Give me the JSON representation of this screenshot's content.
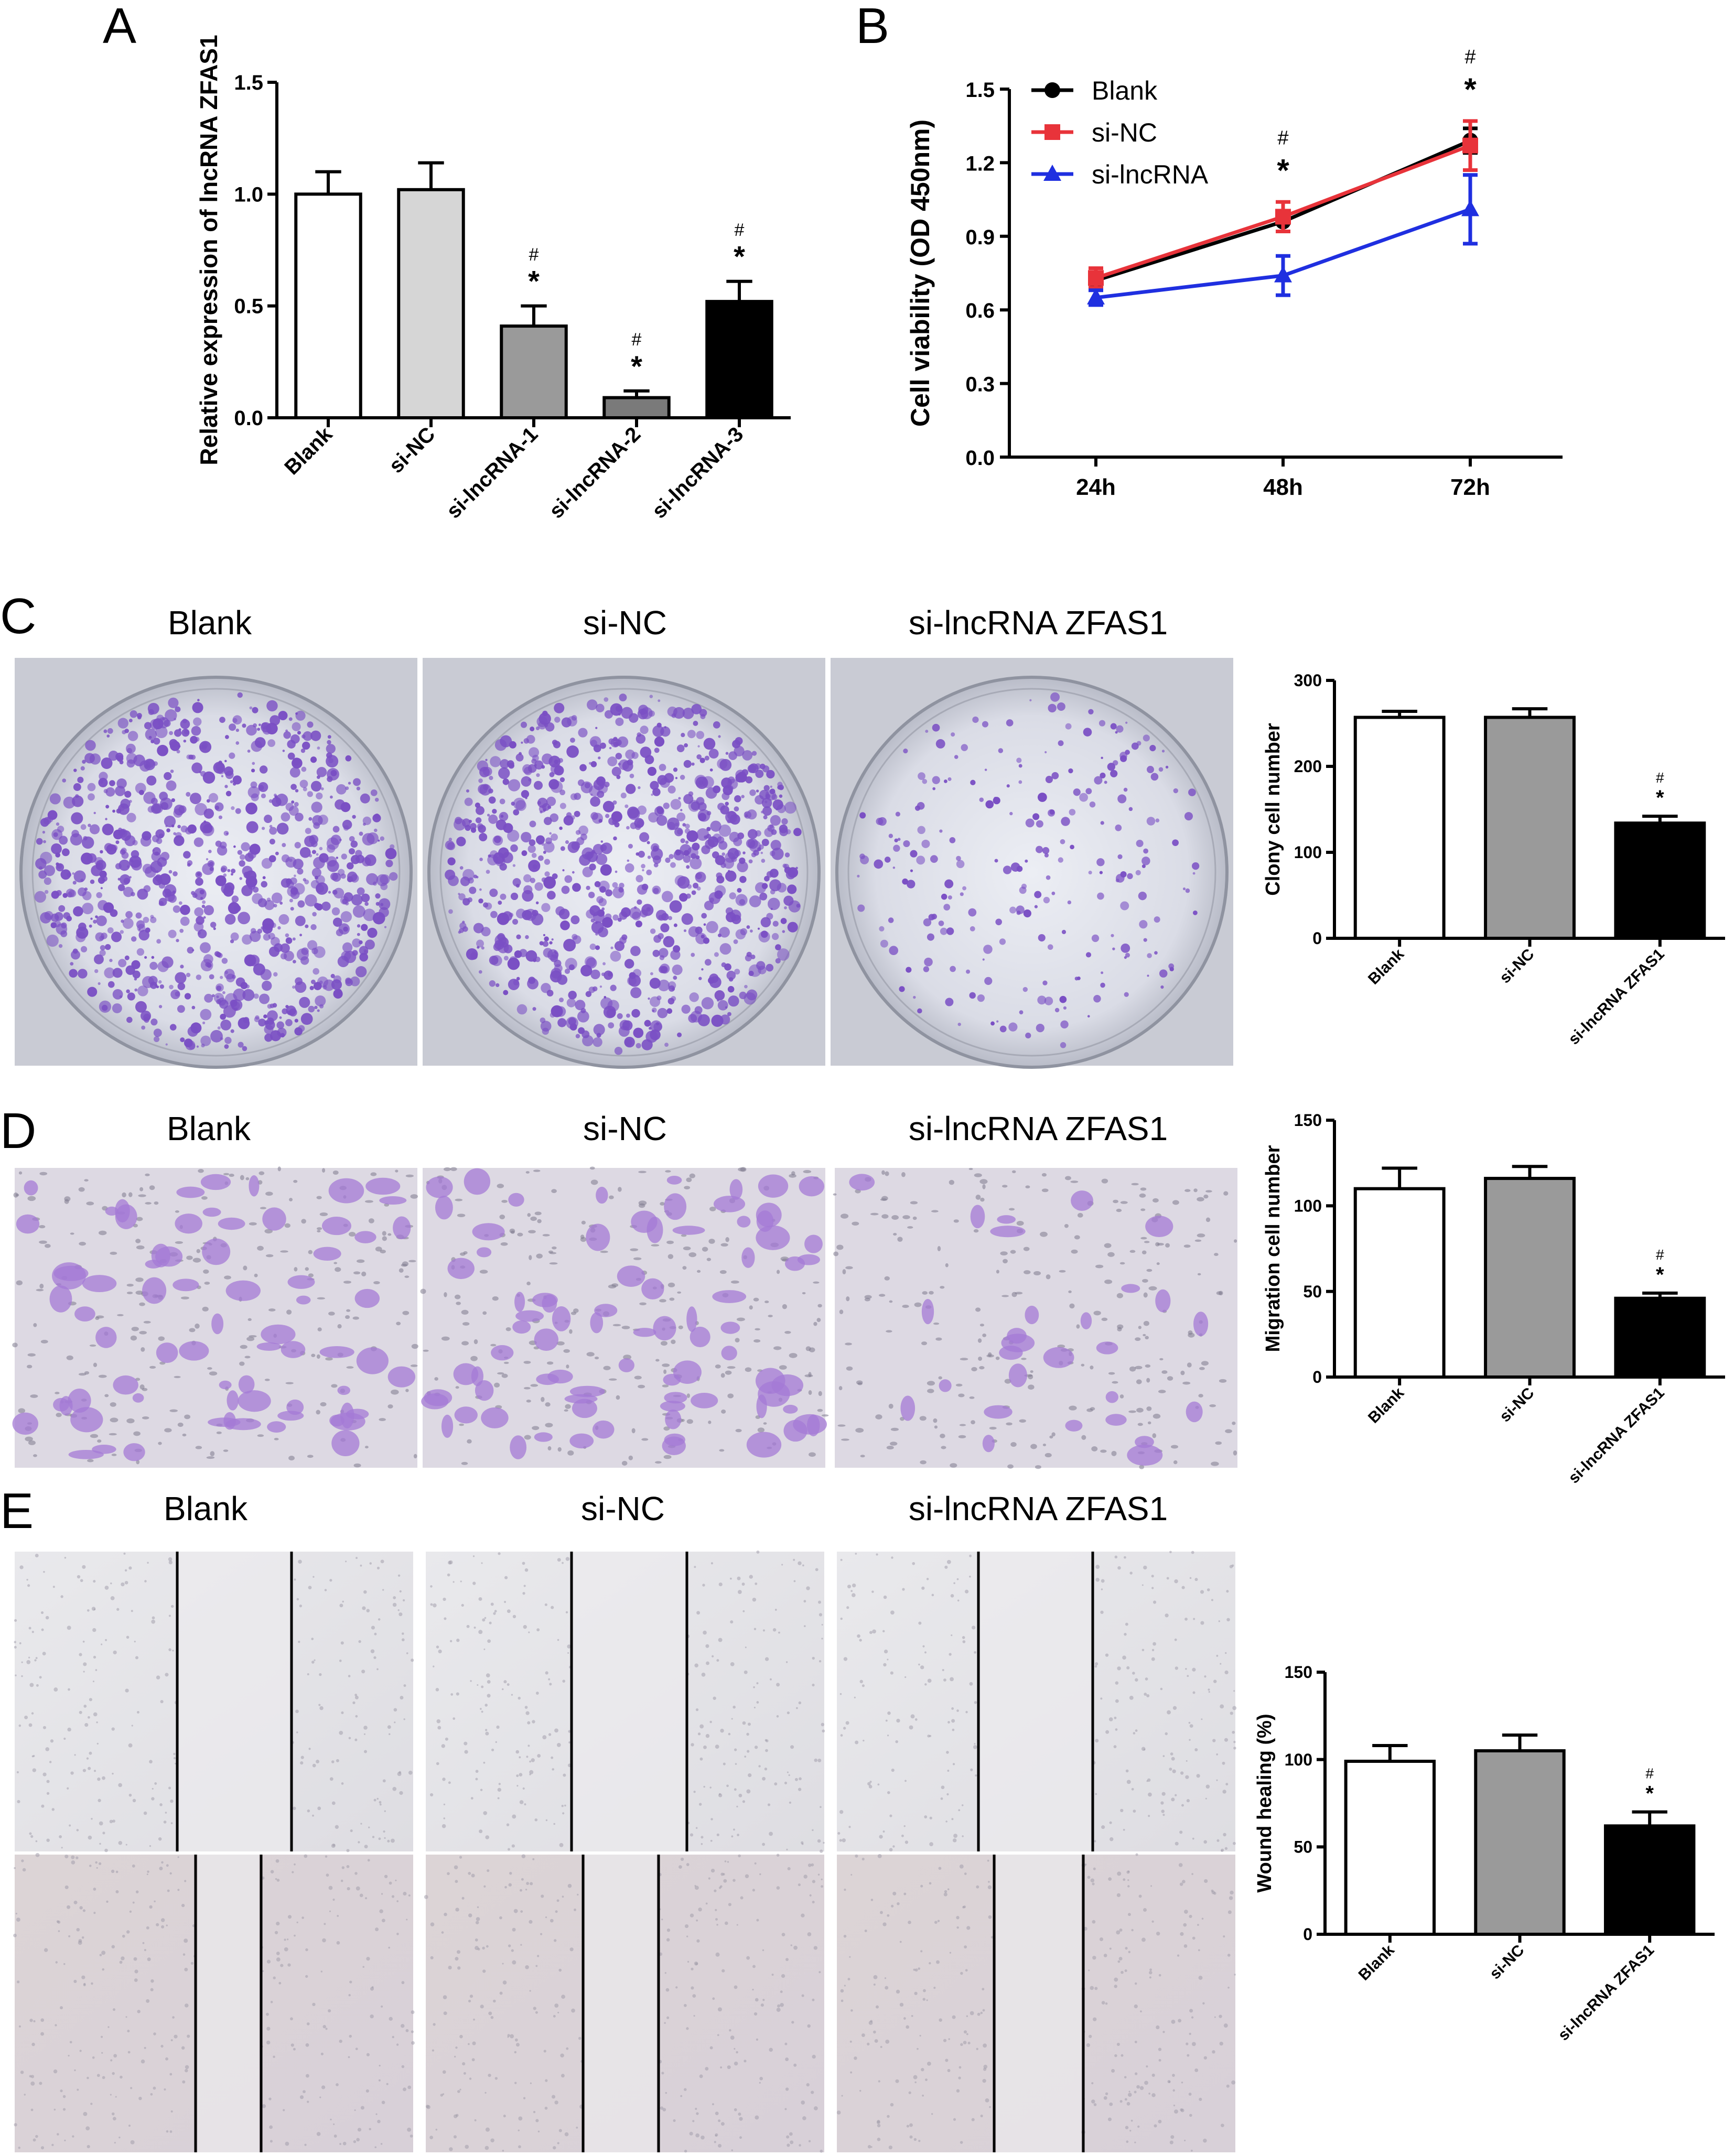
{
  "panels": {
    "A": "A",
    "B": "B",
    "C": "C",
    "D": "D",
    "E": "E"
  },
  "image_groups": {
    "C": [
      "Blank",
      "si-NC",
      "si-lncRNA ZFAS1"
    ],
    "D": [
      "Blank",
      "si-NC",
      "si-lncRNA ZFAS1"
    ],
    "E": [
      "Blank",
      "si-NC",
      "si-lncRNA ZFAS1"
    ]
  },
  "colors": {
    "black": "#000000",
    "red": "#e8333a",
    "blue": "#1f2fe0",
    "light_gray": "#d6d6d6",
    "mid_gray": "#9a9a9a",
    "dark_gray": "#7a7a7a",
    "crystal_violet": "#7a4fc4",
    "plate_bg": "#d9dbe6",
    "scratch_bg": "#e4e2e6"
  },
  "chart_data": [
    {
      "id": "A",
      "type": "bar",
      "ylabel": "Relative expression of lncRNA ZFAS1",
      "categories": [
        "Blank",
        "si-NC",
        "si-lncRNA-1",
        "si-lncRNA-2",
        "si-lncRNA-3"
      ],
      "values": [
        1.0,
        1.02,
        0.41,
        0.09,
        0.52
      ],
      "errors": [
        0.1,
        0.12,
        0.09,
        0.03,
        0.09
      ],
      "fills": [
        "#ffffff",
        "#d6d6d6",
        "#9a9a9a",
        "#7a7a7a",
        "#000000"
      ],
      "ylim": [
        0,
        1.5
      ],
      "yticks": [
        "0.0",
        "0.5",
        "1.0",
        "1.5"
      ],
      "marks": [
        {
          "index": 2,
          "star": "*",
          "hash": "#"
        },
        {
          "index": 3,
          "star": "*",
          "hash": "#"
        },
        {
          "index": 4,
          "star": "*",
          "hash": "#"
        }
      ]
    },
    {
      "id": "B",
      "type": "line",
      "ylabel": "Cell viability (OD 450nm)",
      "categories": [
        "24h",
        "48h",
        "72h"
      ],
      "ylim": [
        0,
        1.5
      ],
      "yticks": [
        "0.0",
        "0.3",
        "0.6",
        "0.9",
        "1.2",
        "1.5"
      ],
      "series": [
        {
          "name": "Blank",
          "values": [
            0.72,
            0.96,
            1.29
          ],
          "errors": [
            0.03,
            0.04,
            0.05
          ],
          "color": "#000000",
          "marker": "circle"
        },
        {
          "name": "si-NC",
          "values": [
            0.73,
            0.98,
            1.27
          ],
          "errors": [
            0.04,
            0.06,
            0.1
          ],
          "color": "#e8333a",
          "marker": "square"
        },
        {
          "name": "si-lncRNA",
          "values": [
            0.65,
            0.74,
            1.01
          ],
          "errors": [
            0.03,
            0.08,
            0.14
          ],
          "color": "#1f2fe0",
          "marker": "triangle"
        }
      ],
      "legend": "top-left",
      "marks": [
        {
          "index": 1,
          "star": "*",
          "hash": "#"
        },
        {
          "index": 2,
          "star": "*",
          "hash": "#"
        }
      ]
    },
    {
      "id": "C",
      "type": "bar",
      "ylabel": "Clony cell number",
      "categories": [
        "Blank",
        "si-NC",
        "si-lncRNA ZFAS1"
      ],
      "values": [
        257,
        257,
        134
      ],
      "errors": [
        7,
        10,
        8
      ],
      "fills": [
        "#ffffff",
        "#9a9a9a",
        "#000000"
      ],
      "ylim": [
        0,
        300
      ],
      "yticks": [
        "0",
        "100",
        "200",
        "300"
      ],
      "marks": [
        {
          "index": 2,
          "star": "*",
          "hash": "#"
        }
      ]
    },
    {
      "id": "D",
      "type": "bar",
      "ylabel": "Migration cell number",
      "categories": [
        "Blank",
        "si-NC",
        "si-lncRNA ZFAS1"
      ],
      "values": [
        110,
        116,
        46
      ],
      "errors": [
        12,
        7,
        3
      ],
      "fills": [
        "#ffffff",
        "#9a9a9a",
        "#000000"
      ],
      "ylim": [
        0,
        150
      ],
      "yticks": [
        "0",
        "50",
        "100",
        "150"
      ],
      "marks": [
        {
          "index": 2,
          "star": "*",
          "hash": "#"
        }
      ]
    },
    {
      "id": "E",
      "type": "bar",
      "ylabel": "Wound healing (%)",
      "categories": [
        "Blank",
        "si-NC",
        "si-lncRNA ZFAS1"
      ],
      "values": [
        99,
        105,
        62
      ],
      "errors": [
        9,
        9,
        8
      ],
      "fills": [
        "#ffffff",
        "#9a9a9a",
        "#000000"
      ],
      "ylim": [
        0,
        150
      ],
      "yticks": [
        "0",
        "50",
        "100",
        "150"
      ],
      "marks": [
        {
          "index": 2,
          "star": "*",
          "hash": "#"
        }
      ]
    }
  ]
}
